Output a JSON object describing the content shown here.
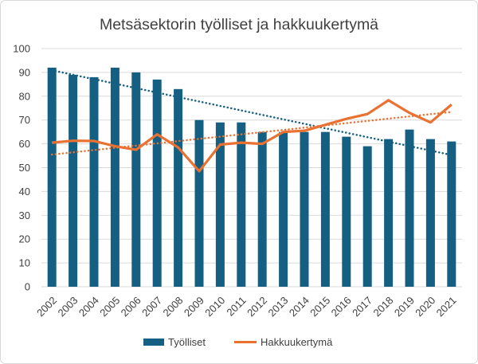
{
  "chart_data": {
    "type": "bar+line",
    "title": "Metsäsektorin työlliset ja hakkuukertymä",
    "xlabel": "",
    "ylabel": "",
    "ylim": [
      0,
      100
    ],
    "yticks": [
      0,
      10,
      20,
      30,
      40,
      50,
      60,
      70,
      80,
      90,
      100
    ],
    "grid": true,
    "legend": "bottom",
    "categories": [
      "2002",
      "2003",
      "2004",
      "2005",
      "2006",
      "2007",
      "2008",
      "2009",
      "2010",
      "2011",
      "2012",
      "2013",
      "2014",
      "2015",
      "2016",
      "2017",
      "2018",
      "2019",
      "2020",
      "2021"
    ],
    "series": [
      {
        "name": "Työlliset",
        "kind": "bar",
        "color": "#156082",
        "trendline": "linear",
        "values": [
          92,
          89,
          88,
          92,
          90,
          87,
          83,
          70,
          69,
          69,
          65,
          65,
          65,
          65,
          63,
          59,
          62,
          66,
          62,
          61
        ]
      },
      {
        "name": "Hakkuukertymä",
        "kind": "line",
        "color": "#E97132",
        "trendline": "linear",
        "values": [
          60.5,
          61.3,
          61.2,
          59,
          57.5,
          64,
          58.5,
          48.5,
          59.7,
          60.5,
          60,
          65,
          65.5,
          68,
          70.5,
          72.5,
          78.3,
          73,
          69,
          76.5
        ]
      }
    ]
  }
}
